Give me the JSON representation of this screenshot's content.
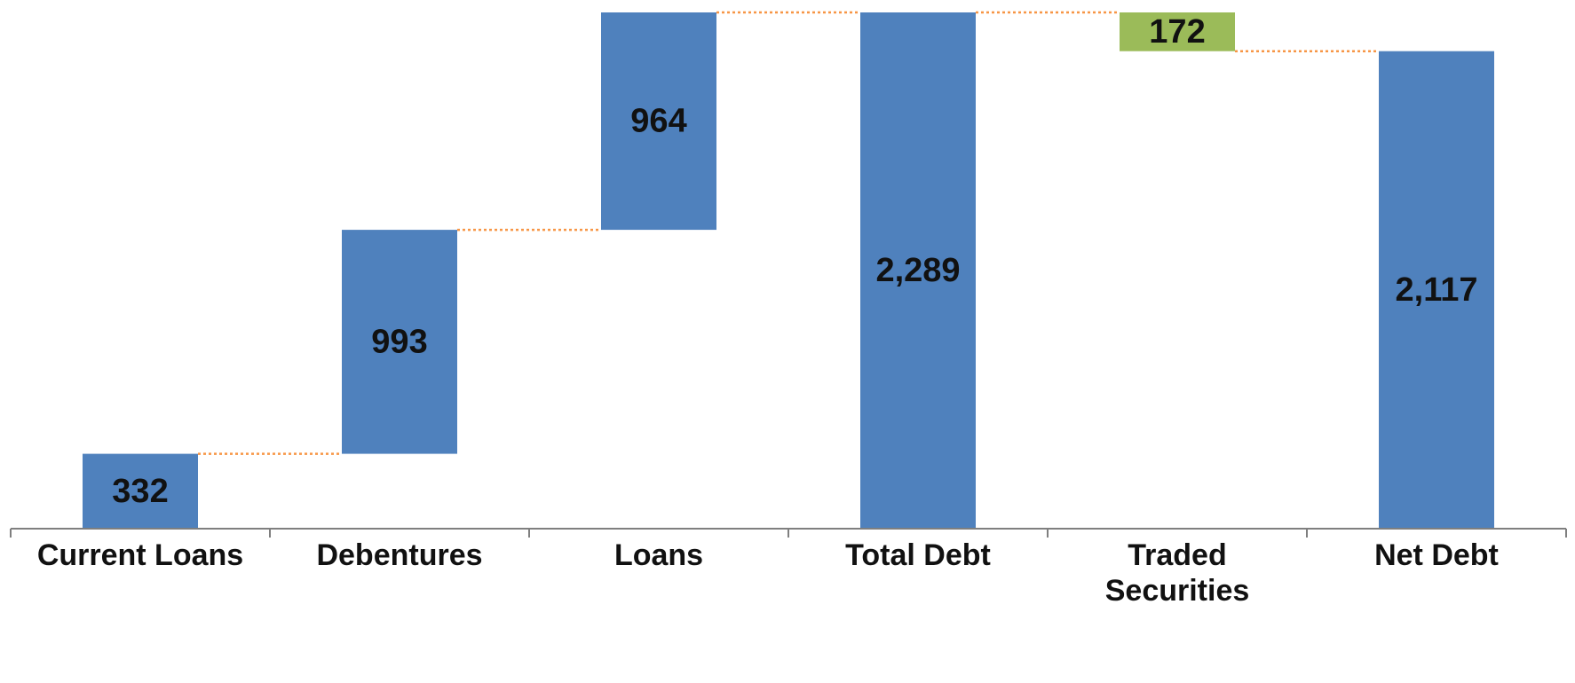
{
  "chart_data": {
    "type": "bar",
    "subtype": "waterfall",
    "title": "",
    "xlabel": "",
    "ylabel": "",
    "ylim": [
      0,
      2289
    ],
    "grid": false,
    "legend": "none",
    "categories": [
      "Current Loans",
      "Debentures",
      "Loans",
      "Total Debt",
      "Traded Securities",
      "Net Debt"
    ],
    "category_lines": [
      [
        "Current Loans"
      ],
      [
        "Debentures"
      ],
      [
        "Loans"
      ],
      [
        "Total Debt"
      ],
      [
        "Traded",
        "Securities"
      ],
      [
        "Net Debt"
      ]
    ],
    "bars": [
      {
        "category": "Current Loans",
        "base": 0,
        "value": 332,
        "label": "332",
        "kind": "increase"
      },
      {
        "category": "Debentures",
        "base": 332,
        "value": 993,
        "label": "993",
        "kind": "increase"
      },
      {
        "category": "Loans",
        "base": 1325,
        "value": 964,
        "label": "964",
        "kind": "increase"
      },
      {
        "category": "Total Debt",
        "base": 0,
        "value": 2289,
        "label": "2,289",
        "kind": "total"
      },
      {
        "category": "Traded Securities",
        "base": 2117,
        "value": 172,
        "label": "172",
        "kind": "decrease"
      },
      {
        "category": "Net Debt",
        "base": 0,
        "value": 2117,
        "label": "2,117",
        "kind": "total"
      }
    ],
    "connector_levels": [
      332,
      1325,
      2289,
      2289,
      2117
    ],
    "colors": {
      "increase": "#4f81bd",
      "total": "#4f81bd",
      "decrease": "#9bbb59",
      "connector": "#f79646",
      "axis": "#7f7f7f"
    }
  }
}
